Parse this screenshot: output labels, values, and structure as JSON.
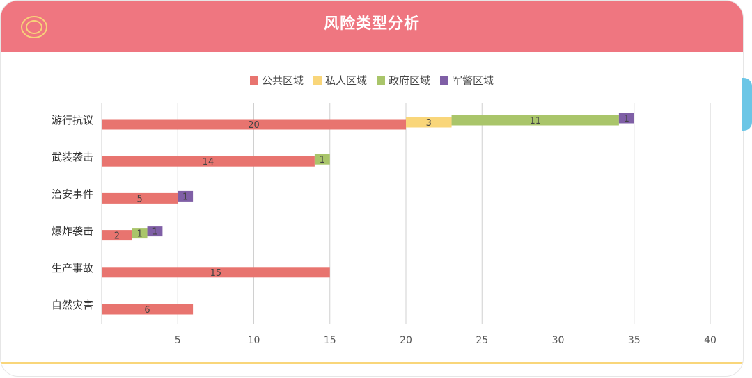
{
  "header": {
    "title": "风险类型分析",
    "icon": "circle-target-icon"
  },
  "colors": {
    "header_bg": "#ef7680",
    "公共区域": "#e8746f",
    "私人区域": "#f9d67a",
    "政府区域": "#a9c56a",
    "军警区域": "#7f5fa6"
  },
  "chart_data": {
    "type": "bar",
    "orientation": "horizontal",
    "stacked": true,
    "title": "风险类型分析",
    "categories": [
      "游行抗议",
      "武装袭击",
      "治安事件",
      "爆炸袭击",
      "生产事故",
      "自然灾害"
    ],
    "series": [
      {
        "name": "公共区域",
        "color": "#e8746f",
        "values": [
          20,
          14,
          5,
          2,
          15,
          6
        ]
      },
      {
        "name": "私人区域",
        "color": "#f9d67a",
        "values": [
          3,
          null,
          null,
          null,
          null,
          null
        ]
      },
      {
        "name": "政府区域",
        "color": "#a9c56a",
        "values": [
          11,
          1,
          null,
          1,
          null,
          null
        ]
      },
      {
        "name": "军警区域",
        "color": "#7f5fa6",
        "values": [
          1,
          null,
          1,
          1,
          null,
          null
        ]
      }
    ],
    "xlim": [
      0,
      40
    ],
    "xticks": [
      5,
      10,
      15,
      20,
      25,
      30,
      35,
      40
    ],
    "grid": true,
    "legend": "top-center"
  }
}
